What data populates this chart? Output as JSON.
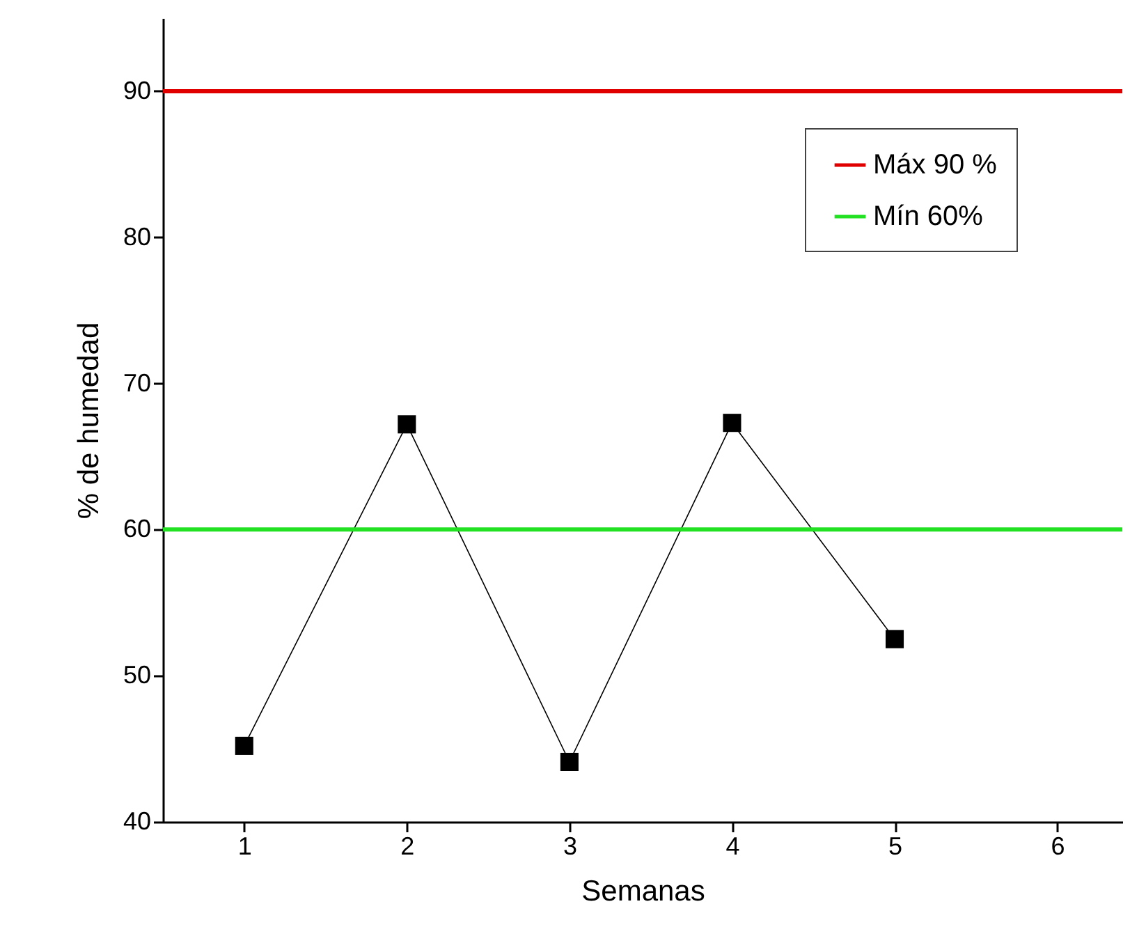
{
  "chart_data": {
    "type": "line",
    "xlabel": "Semanas",
    "ylabel": "% de humedad",
    "x": [
      1,
      2,
      3,
      4,
      5
    ],
    "series": [
      {
        "color": "#000000",
        "values": [
          45.2,
          67.2,
          44.1,
          67.3,
          52.5
        ]
      }
    ],
    "xlim": [
      0.5,
      6.4
    ],
    "xticks": [
      1,
      2,
      3,
      4,
      5,
      6
    ],
    "ylim": [
      40,
      95
    ],
    "yticks": [
      40,
      50,
      60,
      70,
      80,
      90
    ],
    "ref_lines": [
      {
        "axis": "y",
        "value": 90,
        "label": "Máx 90 %",
        "color": "#e00000"
      },
      {
        "axis": "y",
        "value": 60,
        "label": "Mín 60%",
        "color": "#22e022"
      }
    ],
    "marker": "square",
    "grid": false,
    "legend": "top right"
  }
}
